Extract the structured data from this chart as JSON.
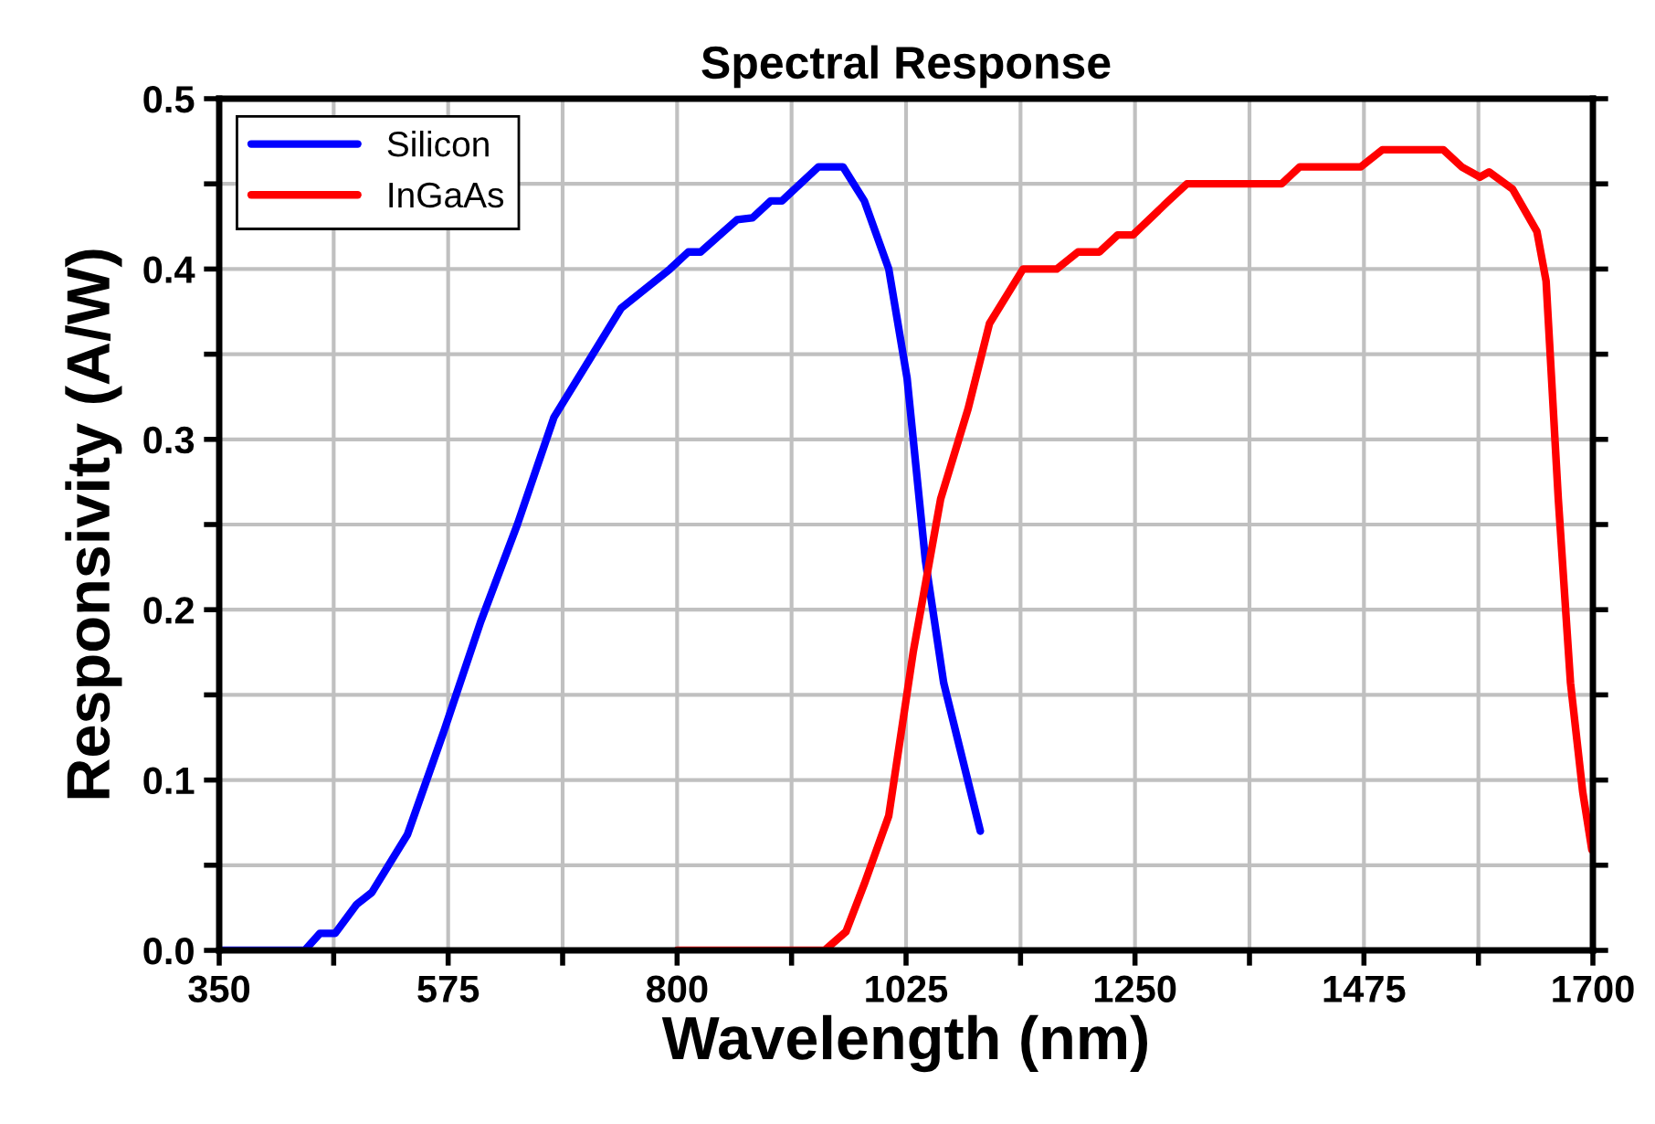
{
  "chart_data": {
    "type": "line",
    "title": "Spectral Response",
    "xlabel": "Wavelength (nm)",
    "ylabel": "Responsivity (A/W)",
    "xlim": [
      350,
      1700
    ],
    "ylim": [
      0,
      0.5
    ],
    "xticks": [
      350,
      {
        "value": 462.5,
        "label": null
      },
      575,
      {
        "value": 687.5,
        "label": null
      },
      800,
      {
        "value": 912.5,
        "label": null
      },
      1025,
      {
        "value": 1137.5,
        "label": null
      },
      1250,
      {
        "value": 1362.5,
        "label": null
      },
      1475,
      {
        "value": 1587.5,
        "label": null
      },
      1700
    ],
    "yticks": [
      {
        "value": 0,
        "label": "0.0"
      },
      {
        "value": 0.05,
        "label": null
      },
      {
        "value": 0.1,
        "label": "0.1"
      },
      {
        "value": 0.15,
        "label": null
      },
      {
        "value": 0.2,
        "label": "0.2"
      },
      {
        "value": 0.25,
        "label": null
      },
      {
        "value": 0.3,
        "label": "0.3"
      },
      {
        "value": 0.35,
        "label": null
      },
      {
        "value": 0.4,
        "label": "0.4"
      },
      {
        "value": 0.45,
        "label": null
      },
      {
        "value": 0.5,
        "label": "0.5"
      }
    ],
    "grid": true,
    "legend": "top left",
    "marker": "none",
    "line_style": "solid",
    "series": [
      {
        "name": "Silicon",
        "color": "#0000ff",
        "x": [
          350,
          434,
          449,
          464,
          485,
          500,
          535,
          571,
          607,
          643,
          679,
          745,
          793,
          811,
          823,
          859,
          874,
          892,
          903,
          939,
          963,
          984,
          1008,
          1026,
          1044,
          1062,
          1098
        ],
        "values": [
          0,
          0,
          0.01,
          0.01,
          0.027,
          0.034,
          0.068,
          0.129,
          0.193,
          0.25,
          0.313,
          0.377,
          0.4,
          0.41,
          0.41,
          0.429,
          0.43,
          0.44,
          0.44,
          0.46,
          0.46,
          0.44,
          0.4,
          0.336,
          0.229,
          0.157,
          0.07
        ]
      },
      {
        "name": "InGaAs",
        "color": "#ff0000",
        "x": [
          800,
          945,
          966,
          984,
          1008,
          1032,
          1059,
          1086,
          1107,
          1140,
          1173,
          1194,
          1215,
          1233,
          1248,
          1283,
          1301,
          1394,
          1412,
          1472,
          1493,
          1553,
          1571,
          1589,
          1598,
          1621,
          1645,
          1654,
          1666,
          1678,
          1690,
          1699
        ],
        "values": [
          0,
          0,
          0.011,
          0.039,
          0.079,
          0.175,
          0.265,
          0.318,
          0.368,
          0.4,
          0.4,
          0.41,
          0.41,
          0.42,
          0.42,
          0.44,
          0.45,
          0.45,
          0.46,
          0.46,
          0.47,
          0.47,
          0.46,
          0.454,
          0.457,
          0.447,
          0.422,
          0.393,
          0.265,
          0.157,
          0.093,
          0.059
        ]
      }
    ]
  }
}
